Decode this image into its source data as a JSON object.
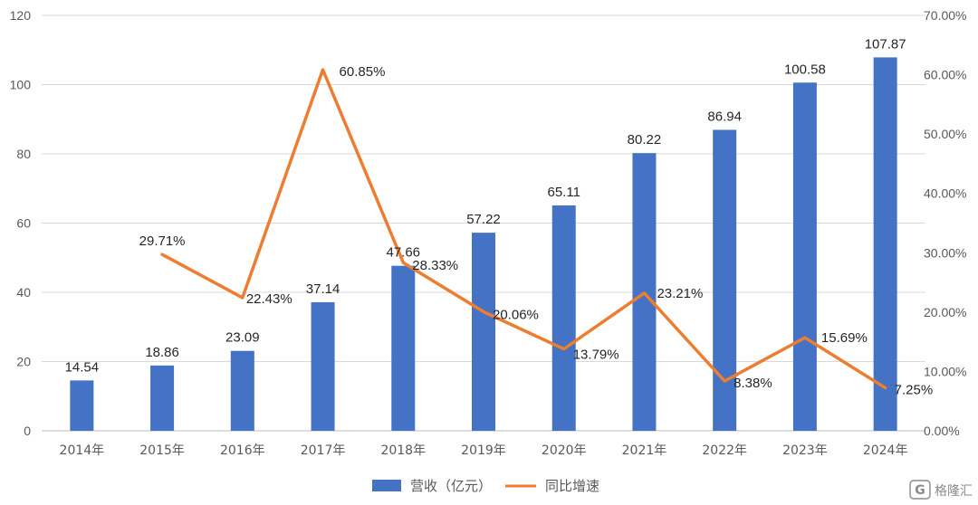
{
  "chart_data": {
    "type": "bar+line",
    "categories": [
      "2014年",
      "2015年",
      "2016年",
      "2017年",
      "2018年",
      "2019年",
      "2020年",
      "2021年",
      "2022年",
      "2023年",
      "2024年"
    ],
    "series": [
      {
        "name": "营收（亿元）",
        "type": "bar",
        "axis": "left",
        "color": "#4472C4",
        "values": [
          14.54,
          18.86,
          23.09,
          37.14,
          47.66,
          57.22,
          65.11,
          80.22,
          86.94,
          100.58,
          107.87
        ],
        "labels": [
          "14.54",
          "18.86",
          "23.09",
          "37.14",
          "47.66",
          "57.22",
          "65.11",
          "80.22",
          "86.94",
          "100.58",
          "107.87"
        ]
      },
      {
        "name": "同比增速",
        "type": "line",
        "axis": "right",
        "color": "#ED7D31",
        "values": [
          null,
          29.71,
          22.43,
          60.85,
          28.33,
          20.06,
          13.79,
          23.21,
          8.38,
          15.69,
          7.25
        ],
        "labels": [
          "",
          "29.71%",
          "22.43%",
          "60.85%",
          "28.33%",
          "20.06%",
          "13.79%",
          "23.21%",
          "8.38%",
          "15.69%",
          "7.25%"
        ]
      }
    ],
    "left_axis": {
      "min": 0,
      "max": 120,
      "ticks": [
        "0",
        "20",
        "40",
        "60",
        "80",
        "100",
        "120"
      ]
    },
    "right_axis": {
      "min": 0,
      "max": 70,
      "ticks": [
        "0.00%",
        "10.00%",
        "20.00%",
        "30.00%",
        "40.00%",
        "50.00%",
        "60.00%",
        "70.00%"
      ]
    },
    "grid": true,
    "legend_position": "bottom"
  },
  "watermark": {
    "text": "格隆汇",
    "badge": "G"
  }
}
